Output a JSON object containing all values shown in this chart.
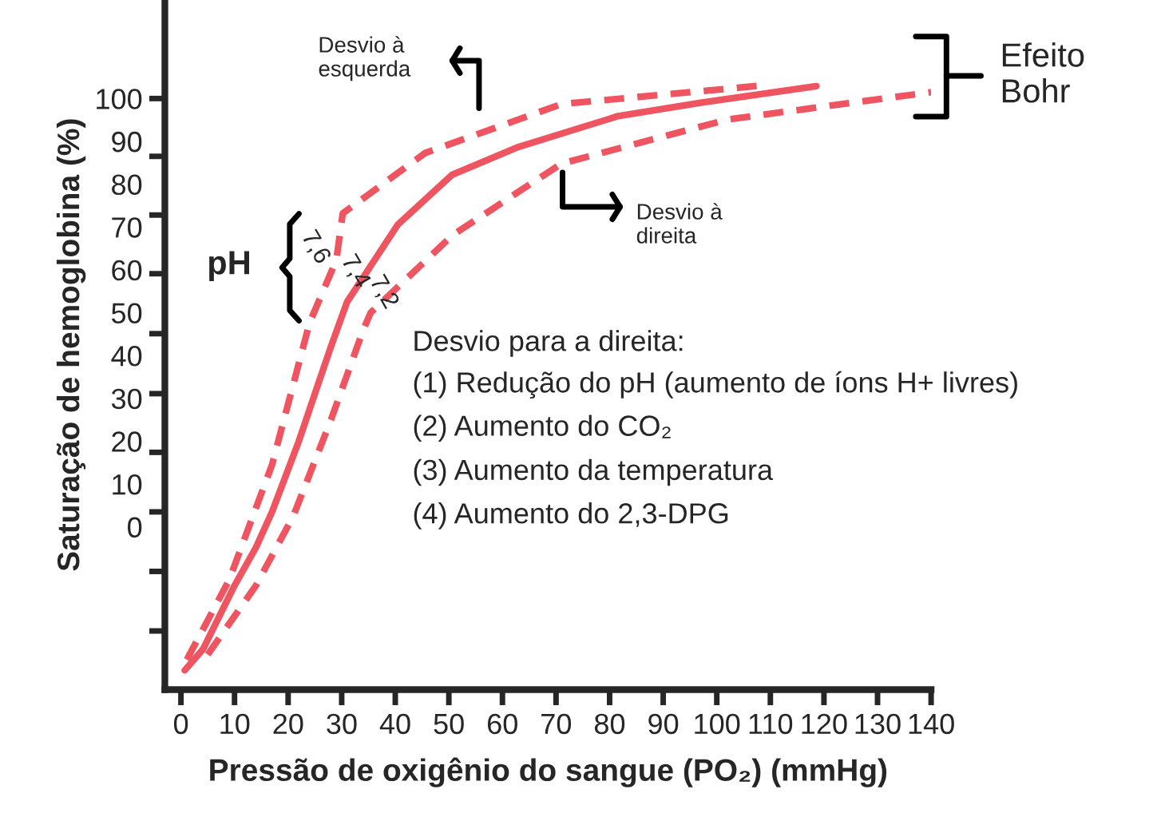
{
  "chart_data": {
    "type": "line",
    "xlabel": "Pressão de oxigênio do sangue (PO₂) (mmHg)",
    "ylabel": "Saturação de hemoglobina (%)",
    "xlim": [
      -3,
      140
    ],
    "ylim": [
      -38,
      123
    ],
    "xticks": [
      0,
      10,
      20,
      30,
      40,
      50,
      60,
      70,
      80,
      90,
      100,
      110,
      120,
      130,
      140
    ],
    "yticks": [
      {
        "value": 100,
        "label": null
      },
      {
        "value": 86.5,
        "label": null
      },
      {
        "value": 72.8,
        "label": null
      },
      {
        "value": 59.1,
        "label": null
      },
      {
        "value": 45.1,
        "label": null
      },
      {
        "value": 31.1,
        "label": null
      },
      {
        "value": 17.4,
        "label": null
      },
      {
        "value": 3.5,
        "label": null
      },
      {
        "value": -10.4,
        "label": null
      },
      {
        "value": -24.3,
        "label": null
      },
      100,
      90,
      80,
      70,
      60,
      50,
      40,
      30,
      20,
      10,
      0
    ],
    "grid": false,
    "legend": false,
    "marker": "none",
    "series": [
      {
        "name": "7,6",
        "color": "#ef5560",
        "line_style": "dashed",
        "x": [
          1.1,
          9,
          17,
          24,
          29,
          30.2,
          45.6,
          71,
          109
        ],
        "values": [
          -31.0,
          -12.4,
          14.5,
          47.6,
          62.3,
          73.2,
          87.3,
          98.7,
          103.1
        ]
      },
      {
        "name": "7,4",
        "color": "#ef5560",
        "line_style": "solid",
        "x": [
          0.7,
          4.1,
          10,
          14,
          17,
          22,
          25,
          28,
          31,
          40.5,
          50.6,
          63,
          81.6,
          97,
          118.6
        ],
        "values": [
          -33.5,
          -28.6,
          -13.7,
          -4.8,
          3.5,
          20.0,
          31.1,
          42.1,
          52.5,
          70.6,
          82.2,
          88.7,
          95.9,
          99.0,
          102.9
        ]
      },
      {
        "name": "7,2",
        "color": "#ef5560",
        "line_style": "dashed",
        "x": [
          5,
          14,
          21,
          28,
          34,
          35.4,
          50.7,
          71,
          102,
          140
        ],
        "values": [
          -29.8,
          -13.7,
          2.6,
          25.0,
          45.9,
          50.0,
          68.1,
          84.8,
          95.1,
          101.5
        ]
      }
    ],
    "annotations": [
      "pH",
      "Desvio à\nesquerda",
      "Desvio à\ndireita",
      "Efeito\nBohr",
      "Desvio para a direita:",
      "(1) Redução do pH (aumento de íons H+ livres)",
      "(2) Aumento do CO₂",
      "(3) Aumento da temperatura",
      "(4) Aumento do 2,3-DPG"
    ]
  }
}
